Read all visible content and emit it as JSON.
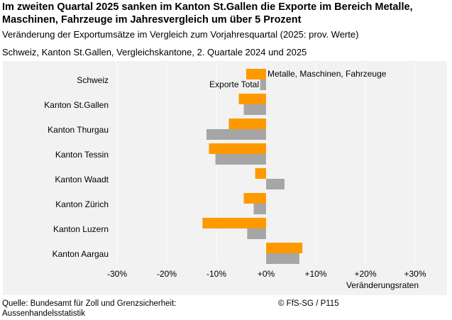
{
  "title": "Im zweiten Quartal 2025 sanken im Kanton St.Gallen die Exporte im Bereich Metalle, Maschinen, Fahrzeuge im Jahresvergleich um über 5 Prozent",
  "subtitle": "Veränderung der Exportumsätze im Vergleich zum Vorjahresquartal (2025: prov. Werte)",
  "meta": "Schweiz, Kanton St.Gallen, Vergleichskantone, 2. Quartale 2024 und 2025",
  "footer": {
    "source_line1": "Quelle: Bundesamt für Zoll und Grenzsicherheit:",
    "source_line2": "Aussenhandelsstatistik",
    "copyright": "© FfS-SG / P115"
  },
  "colors": {
    "metal": "#ff9900",
    "total": "#a6a6a6",
    "plot_bg": "#f2f2f2",
    "grid": "#ffffff"
  },
  "chart_data": {
    "type": "bar",
    "orientation": "horizontal",
    "categories": [
      "Schweiz",
      "Kanton St.Gallen",
      "Kanton Thurgau",
      "Kanton Tessin",
      "Kanton Waadt",
      "Kanton Zürich",
      "Kanton Luzern",
      "Kanton Aargau"
    ],
    "series": [
      {
        "name": "Metalle, Maschinen, Fahrzeuge",
        "values": [
          -4.0,
          -5.5,
          -7.5,
          -11.5,
          -2.2,
          -4.5,
          -12.8,
          7.3
        ]
      },
      {
        "name": "Exporte Total",
        "values": [
          -1.2,
          -4.5,
          -12.0,
          -10.2,
          3.7,
          -2.5,
          -3.8,
          6.7
        ]
      }
    ],
    "xlim": [
      -30,
      30
    ],
    "xticks": [
      -30,
      -20,
      -10,
      0,
      10,
      20,
      30
    ],
    "xtick_labels": [
      "-30%",
      "-20%",
      "-10%",
      "+0%",
      "+10%",
      "+20%",
      "+30%"
    ],
    "xlabel": "Veränderungsraten",
    "legend_placement": "inside-top"
  }
}
